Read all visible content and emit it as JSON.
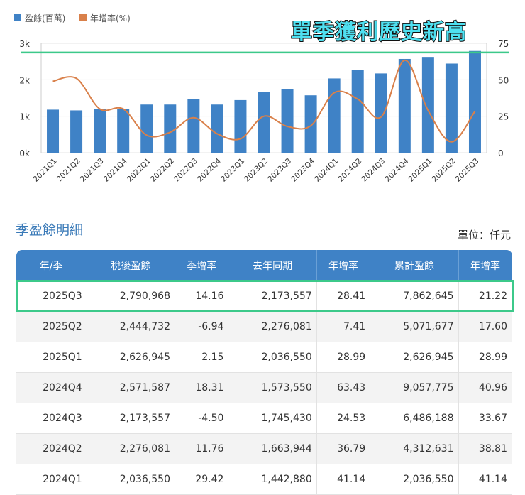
{
  "headline": "單季獲利歷史新高",
  "chart_data": {
    "type": "bar+line",
    "legend": [
      {
        "name": "盈餘(百萬)",
        "color": "#3f82c6"
      },
      {
        "name": "年增率(%)",
        "color": "#d9804a"
      }
    ],
    "legend_position": "top-left",
    "categories": [
      "2021Q1",
      "2021Q2",
      "2021Q3",
      "2021Q4",
      "2022Q1",
      "2022Q2",
      "2022Q3",
      "2022Q4",
      "2023Q1",
      "2023Q2",
      "2023Q3",
      "2023Q4",
      "2024Q1",
      "2024Q2",
      "2024Q3",
      "2024Q4",
      "2025Q1",
      "2025Q2",
      "2025Q3"
    ],
    "series": [
      {
        "name": "盈餘(百萬)",
        "type": "bar",
        "axis": "left",
        "values": [
          1180,
          1160,
          1200,
          1190,
          1320,
          1320,
          1480,
          1320,
          1443,
          1664,
          1745,
          1574,
          2037,
          2276,
          2174,
          2572,
          2627,
          2445,
          2791
        ]
      },
      {
        "name": "年增率(%)",
        "type": "line",
        "axis": "right",
        "values": [
          49,
          51,
          30,
          30,
          12,
          14,
          24,
          13,
          9.5,
          25,
          18,
          18.5,
          41.14,
          36.79,
          24.53,
          63.43,
          28.99,
          7.41,
          28.41
        ]
      }
    ],
    "y_left": {
      "ticks": [
        "0k",
        "1k",
        "2k",
        "3k"
      ],
      "range": [
        0,
        3000
      ]
    },
    "y_right": {
      "ticks": [
        "0",
        "25",
        "50",
        "75"
      ],
      "range": [
        0,
        75
      ]
    },
    "grid": true,
    "reference_line": {
      "value_left": 2750,
      "color": "#3cc98a"
    }
  },
  "table": {
    "title": "季盈餘明細",
    "unit": "單位：仟元",
    "headers": [
      "年/季",
      "稅後盈餘",
      "季增率",
      "去年同期",
      "年增率",
      "累計盈餘",
      "年增率"
    ],
    "rows": [
      [
        "2025Q3",
        "2,790,968",
        "14.16",
        "2,173,557",
        "28.41",
        "7,862,645",
        "21.22"
      ],
      [
        "2025Q2",
        "2,444,732",
        "-6.94",
        "2,276,081",
        "7.41",
        "5,071,677",
        "17.60"
      ],
      [
        "2025Q1",
        "2,626,945",
        "2.15",
        "2,036,550",
        "28.99",
        "2,626,945",
        "28.99"
      ],
      [
        "2024Q4",
        "2,571,587",
        "18.31",
        "1,573,550",
        "63.43",
        "9,057,775",
        "40.96"
      ],
      [
        "2024Q3",
        "2,173,557",
        "-4.50",
        "1,745,430",
        "24.53",
        "6,486,188",
        "33.67"
      ],
      [
        "2024Q2",
        "2,276,081",
        "11.76",
        "1,663,944",
        "36.79",
        "4,312,631",
        "38.81"
      ],
      [
        "2024Q1",
        "2,036,550",
        "29.42",
        "1,442,880",
        "41.14",
        "2,036,550",
        "41.14"
      ]
    ]
  }
}
